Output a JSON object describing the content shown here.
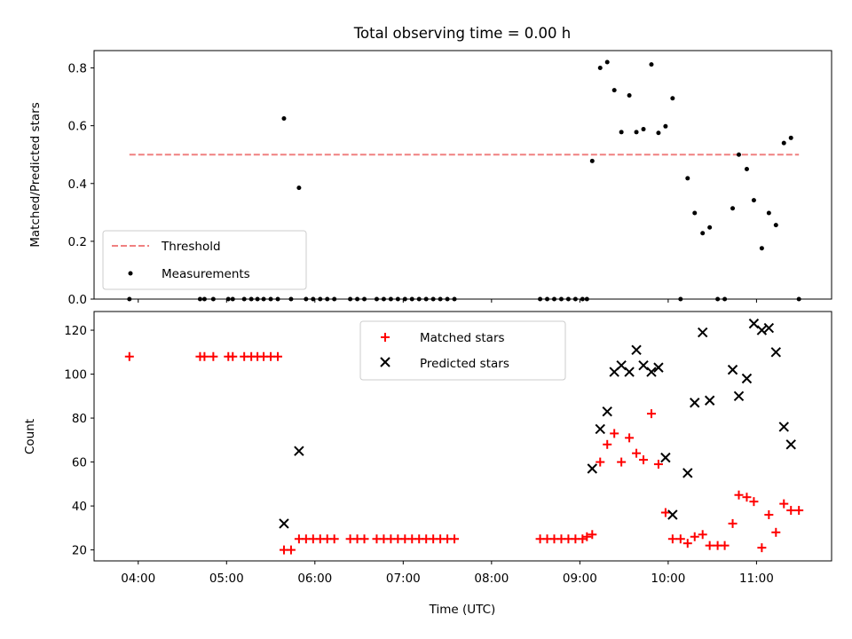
{
  "chart_data": {
    "title": "Total observing time = 0.00 h",
    "xlabel": "Time (UTC)",
    "x_unit": "decimal hour UTC",
    "xlim": [
      3.5,
      11.85
    ],
    "x_ticks": [
      {
        "value": 4,
        "label": "04:00"
      },
      {
        "value": 5,
        "label": "05:00"
      },
      {
        "value": 6,
        "label": "06:00"
      },
      {
        "value": 7,
        "label": "07:00"
      },
      {
        "value": 8,
        "label": "08:00"
      },
      {
        "value": 9,
        "label": "09:00"
      },
      {
        "value": 10,
        "label": "10:00"
      },
      {
        "value": 11,
        "label": "11:00"
      }
    ],
    "panels": [
      {
        "id": "ratio",
        "type": "scatter",
        "ylabel": "Matched/Predicted stars",
        "ylim": [
          0,
          0.86
        ],
        "y_ticks": [
          {
            "value": 0.0,
            "label": "0.0"
          },
          {
            "value": 0.2,
            "label": "0.2"
          },
          {
            "value": 0.4,
            "label": "0.4"
          },
          {
            "value": 0.6,
            "label": "0.6"
          },
          {
            "value": 0.8,
            "label": "0.8"
          }
        ],
        "legend": {
          "placement": "lower-left",
          "entries": [
            {
              "label": "Threshold",
              "color": "#f08080",
              "marker": "dashed-line"
            },
            {
              "label": "Measurements",
              "color": "#000000",
              "marker": "dot"
            }
          ]
        },
        "threshold": {
          "name": "Threshold",
          "x": [
            3.9,
            11.48
          ],
          "y": 0.5,
          "color": "#f08080"
        },
        "measurements": {
          "name": "Measurements",
          "color": "#000000",
          "points": [
            [
              3.9,
              0.0
            ],
            [
              4.7,
              0.0
            ],
            [
              4.75,
              0.0
            ],
            [
              4.85,
              0.0
            ],
            [
              5.02,
              0.0
            ],
            [
              5.07,
              0.0
            ],
            [
              5.2,
              0.0
            ],
            [
              5.28,
              0.0
            ],
            [
              5.35,
              0.0
            ],
            [
              5.42,
              0.0
            ],
            [
              5.5,
              0.0
            ],
            [
              5.58,
              0.0
            ],
            [
              5.65,
              0.625
            ],
            [
              5.82,
              0.385
            ],
            [
              5.73,
              0.0
            ],
            [
              5.9,
              0.0
            ],
            [
              5.98,
              0.0
            ],
            [
              6.06,
              0.0
            ],
            [
              6.14,
              0.0
            ],
            [
              6.22,
              0.0
            ],
            [
              6.4,
              0.0
            ],
            [
              6.48,
              0.0
            ],
            [
              6.56,
              0.0
            ],
            [
              6.7,
              0.0
            ],
            [
              6.78,
              0.0
            ],
            [
              6.86,
              0.0
            ],
            [
              6.94,
              0.0
            ],
            [
              7.02,
              0.0
            ],
            [
              7.1,
              0.0
            ],
            [
              7.18,
              0.0
            ],
            [
              7.26,
              0.0
            ],
            [
              7.34,
              0.0
            ],
            [
              7.42,
              0.0
            ],
            [
              7.5,
              0.0
            ],
            [
              7.58,
              0.0
            ],
            [
              8.55,
              0.0
            ],
            [
              8.63,
              0.0
            ],
            [
              8.71,
              0.0
            ],
            [
              8.79,
              0.0
            ],
            [
              8.87,
              0.0
            ],
            [
              8.95,
              0.0
            ],
            [
              9.03,
              0.0
            ],
            [
              9.08,
              0.0
            ],
            [
              9.14,
              0.478
            ],
            [
              9.23,
              0.8
            ],
            [
              9.31,
              0.82
            ],
            [
              9.39,
              0.723
            ],
            [
              9.47,
              0.578
            ],
            [
              9.56,
              0.705
            ],
            [
              9.64,
              0.578
            ],
            [
              9.72,
              0.588
            ],
            [
              9.81,
              0.812
            ],
            [
              9.89,
              0.575
            ],
            [
              9.97,
              0.598
            ],
            [
              10.05,
              0.695
            ],
            [
              10.14,
              0.0
            ],
            [
              10.22,
              0.418
            ],
            [
              10.3,
              0.298
            ],
            [
              10.39,
              0.228
            ],
            [
              10.47,
              0.248
            ],
            [
              10.56,
              0.0
            ],
            [
              10.64,
              0.0
            ],
            [
              10.73,
              0.314
            ],
            [
              10.8,
              0.5
            ],
            [
              10.89,
              0.45
            ],
            [
              10.97,
              0.342
            ],
            [
              11.06,
              0.176
            ],
            [
              11.14,
              0.298
            ],
            [
              11.22,
              0.256
            ],
            [
              11.31,
              0.54
            ],
            [
              11.39,
              0.558
            ],
            [
              11.48,
              0.0
            ]
          ]
        }
      },
      {
        "id": "counts",
        "type": "scatter",
        "ylabel": "Count",
        "ylim": [
          15,
          128.5
        ],
        "y_ticks": [
          {
            "value": 20,
            "label": "20"
          },
          {
            "value": 40,
            "label": "40"
          },
          {
            "value": 60,
            "label": "60"
          },
          {
            "value": 80,
            "label": "80"
          },
          {
            "value": 100,
            "label": "100"
          },
          {
            "value": 120,
            "label": "120"
          }
        ],
        "legend": {
          "placement": "upper-center",
          "entries": [
            {
              "label": "Matched stars",
              "color": "#ff0000",
              "marker": "plus"
            },
            {
              "label": "Predicted stars",
              "color": "#000000",
              "marker": "x"
            }
          ]
        },
        "series": [
          {
            "name": "Matched stars",
            "marker": "plus",
            "color": "#ff0000",
            "points": [
              [
                3.9,
                108
              ],
              [
                4.7,
                108
              ],
              [
                4.75,
                108
              ],
              [
                4.85,
                108
              ],
              [
                5.02,
                108
              ],
              [
                5.07,
                108
              ],
              [
                5.2,
                108
              ],
              [
                5.28,
                108
              ],
              [
                5.35,
                108
              ],
              [
                5.42,
                108
              ],
              [
                5.5,
                108
              ],
              [
                5.58,
                108
              ],
              [
                5.65,
                20
              ],
              [
                5.73,
                20
              ],
              [
                5.82,
                25
              ],
              [
                5.9,
                25
              ],
              [
                5.98,
                25
              ],
              [
                6.06,
                25
              ],
              [
                6.14,
                25
              ],
              [
                6.22,
                25
              ],
              [
                6.4,
                25
              ],
              [
                6.48,
                25
              ],
              [
                6.56,
                25
              ],
              [
                6.7,
                25
              ],
              [
                6.78,
                25
              ],
              [
                6.86,
                25
              ],
              [
                6.94,
                25
              ],
              [
                7.02,
                25
              ],
              [
                7.1,
                25
              ],
              [
                7.18,
                25
              ],
              [
                7.26,
                25
              ],
              [
                7.34,
                25
              ],
              [
                7.42,
                25
              ],
              [
                7.5,
                25
              ],
              [
                7.58,
                25
              ],
              [
                8.55,
                25
              ],
              [
                8.63,
                25
              ],
              [
                8.71,
                25
              ],
              [
                8.79,
                25
              ],
              [
                8.87,
                25
              ],
              [
                8.95,
                25
              ],
              [
                9.03,
                25
              ],
              [
                9.08,
                26
              ],
              [
                9.14,
                27
              ],
              [
                9.23,
                60
              ],
              [
                9.31,
                68
              ],
              [
                9.39,
                73
              ],
              [
                9.47,
                60
              ],
              [
                9.56,
                71
              ],
              [
                9.64,
                64
              ],
              [
                9.72,
                61
              ],
              [
                9.81,
                82
              ],
              [
                9.89,
                59
              ],
              [
                9.97,
                37
              ],
              [
                10.05,
                25
              ],
              [
                10.14,
                25
              ],
              [
                10.22,
                23
              ],
              [
                10.3,
                26
              ],
              [
                10.39,
                27
              ],
              [
                10.47,
                22
              ],
              [
                10.56,
                22
              ],
              [
                10.64,
                22
              ],
              [
                10.73,
                32
              ],
              [
                10.8,
                45
              ],
              [
                10.89,
                44
              ],
              [
                10.97,
                42
              ],
              [
                11.06,
                21
              ],
              [
                11.14,
                36
              ],
              [
                11.22,
                28
              ],
              [
                11.31,
                41
              ],
              [
                11.39,
                38
              ],
              [
                11.48,
                38
              ]
            ]
          },
          {
            "name": "Predicted stars",
            "marker": "x",
            "color": "#000000",
            "points": [
              [
                5.65,
                32
              ],
              [
                5.82,
                65
              ],
              [
                9.14,
                57
              ],
              [
                9.23,
                75
              ],
              [
                9.31,
                83
              ],
              [
                9.39,
                101
              ],
              [
                9.47,
                104
              ],
              [
                9.56,
                101
              ],
              [
                9.64,
                111
              ],
              [
                9.72,
                104
              ],
              [
                9.81,
                101
              ],
              [
                9.89,
                103
              ],
              [
                9.97,
                62
              ],
              [
                10.05,
                36
              ],
              [
                10.22,
                55
              ],
              [
                10.3,
                87
              ],
              [
                10.39,
                119
              ],
              [
                10.47,
                88
              ],
              [
                10.73,
                102
              ],
              [
                10.8,
                90
              ],
              [
                10.89,
                98
              ],
              [
                10.97,
                123
              ],
              [
                11.06,
                120
              ],
              [
                11.14,
                121
              ],
              [
                11.22,
                110
              ],
              [
                11.31,
                76
              ],
              [
                11.39,
                68
              ]
            ]
          }
        ]
      }
    ]
  }
}
